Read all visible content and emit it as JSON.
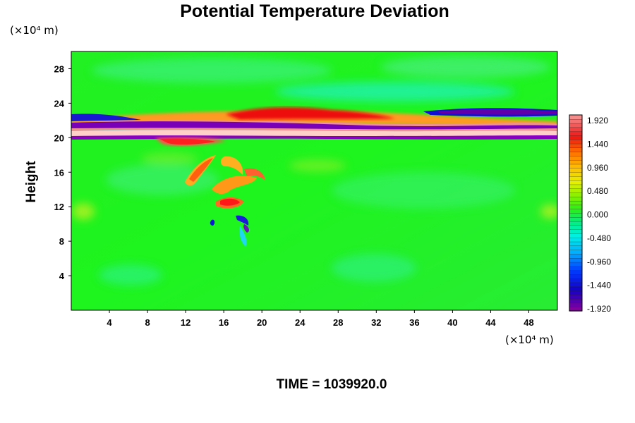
{
  "chart_data": {
    "type": "heatmap",
    "title": "Potential Temperature Deviation",
    "ylabel": "Height",
    "x_unit": "(×10⁴ m)",
    "y_unit": "(×10⁴ m)",
    "xlim": [
      0,
      51
    ],
    "ylim": [
      0,
      30
    ],
    "x_ticks": [
      4,
      8,
      12,
      16,
      20,
      24,
      28,
      32,
      36,
      40,
      44,
      48
    ],
    "y_ticks": [
      4,
      8,
      12,
      16,
      20,
      24,
      28
    ],
    "colorbar": {
      "min": -1.92,
      "max": 1.92,
      "ticks": [
        "1.920",
        "1.440",
        "0.960",
        "0.480",
        "0.000",
        "-0.480",
        "-0.960",
        "-1.440",
        "-1.920"
      ]
    },
    "annotation": "TIME = 1039920.0",
    "features": [
      {
        "kind": "positive band",
        "y_range": [
          19.5,
          24
        ],
        "peak": 1.92
      },
      {
        "kind": "negative band",
        "y_range": [
          20.5,
          22.5
        ],
        "peak": -1.92
      },
      {
        "kind": "plume",
        "x_range": [
          12,
          20
        ],
        "y_range": [
          9,
          18
        ]
      }
    ]
  }
}
